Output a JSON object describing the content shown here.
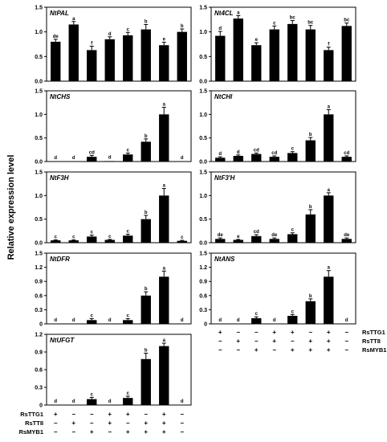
{
  "ylabel": "Relative expression level",
  "treatment_rows": [
    "RsTTG1",
    "RsTT8",
    "RsMYB1"
  ],
  "treatment_signs": [
    [
      "+",
      "−",
      "−",
      "+",
      "+",
      "−",
      "+",
      "−"
    ],
    [
      "−",
      "+",
      "−",
      "+",
      "−",
      "+",
      "+",
      "−"
    ],
    [
      "−",
      "−",
      "+",
      "−",
      "+",
      "+",
      "+",
      "−"
    ]
  ],
  "chart_data": [
    {
      "type": "bar",
      "title": "NtPAL",
      "ylim": [
        0,
        1.5
      ],
      "yticks": [
        "0.0",
        "0.5",
        "1.0",
        "1.5"
      ],
      "values": [
        0.8,
        1.15,
        0.63,
        0.85,
        0.93,
        1.05,
        0.73,
        1.0
      ],
      "errors": [
        0.05,
        0.06,
        0.08,
        0.05,
        0.06,
        0.1,
        0.06,
        0.06
      ],
      "letters": [
        "de",
        "a",
        "f",
        "d",
        "c",
        "b",
        "e",
        "b"
      ]
    },
    {
      "type": "bar",
      "title": "Nt4CL",
      "ylim": [
        0,
        1.5
      ],
      "yticks": [
        "0.0",
        "0.5",
        "1.0",
        "1.5"
      ],
      "values": [
        0.92,
        1.27,
        0.73,
        1.05,
        1.16,
        1.05,
        0.63,
        1.12
      ],
      "errors": [
        0.09,
        0.06,
        0.05,
        0.07,
        0.07,
        0.08,
        0.06,
        0.06
      ],
      "letters": [
        "d",
        "a",
        "e",
        "c",
        "bc",
        "bc",
        "f",
        "bc"
      ]
    },
    {
      "type": "bar",
      "title": "NtCHS",
      "ylim": [
        0,
        1.5
      ],
      "yticks": [
        "0.0",
        "0.5",
        "1.0",
        "1.5"
      ],
      "values": [
        0,
        0,
        0.1,
        0.01,
        0.15,
        0.42,
        1.0,
        0
      ],
      "errors": [
        0,
        0,
        0.03,
        0,
        0.03,
        0.06,
        0.15,
        0
      ],
      "letters": [
        "d",
        "d",
        "cd",
        "d",
        "c",
        "b",
        "a",
        "d"
      ]
    },
    {
      "type": "bar",
      "title": "NtCHI",
      "ylim": [
        0,
        1.5
      ],
      "yticks": [
        "0.0",
        "0.5",
        "1.0",
        "1.5"
      ],
      "values": [
        0.08,
        0.12,
        0.16,
        0.1,
        0.18,
        0.45,
        1.0,
        0.1
      ],
      "errors": [
        0.02,
        0.02,
        0.02,
        0.02,
        0.03,
        0.06,
        0.1,
        0.02
      ],
      "letters": [
        "d",
        "d",
        "cd",
        "cd",
        "c",
        "b",
        "a",
        "cd"
      ]
    },
    {
      "type": "bar",
      "title": "NtF3H",
      "ylim": [
        0,
        1.5
      ],
      "yticks": [
        "0.0",
        "0.5",
        "1.0",
        "1.5"
      ],
      "values": [
        0.05,
        0.05,
        0.13,
        0.06,
        0.15,
        0.5,
        1.0,
        0.04
      ],
      "errors": [
        0.01,
        0.01,
        0.03,
        0.01,
        0.03,
        0.08,
        0.15,
        0.01
      ],
      "letters": [
        "c",
        "c",
        "c",
        "c",
        "c",
        "b",
        "a",
        "c"
      ]
    },
    {
      "type": "bar",
      "title": "NtF3'H",
      "ylim": [
        0,
        1.5
      ],
      "yticks": [
        "0.0",
        "0.5",
        "1.0",
        "1.5"
      ],
      "values": [
        0.08,
        0.06,
        0.14,
        0.08,
        0.18,
        0.6,
        1.0,
        0.08
      ],
      "errors": [
        0.02,
        0.01,
        0.03,
        0.02,
        0.03,
        0.1,
        0.06,
        0.02
      ],
      "letters": [
        "de",
        "e",
        "cd",
        "de",
        "c",
        "b",
        "a",
        "de"
      ]
    },
    {
      "type": "bar",
      "title": "NtDFR",
      "ylim": [
        0,
        1.5
      ],
      "yticks": [
        "0",
        "0.3",
        "0.6",
        "0.9",
        "1.2",
        "1.5"
      ],
      "values": [
        0,
        0,
        0.08,
        0,
        0.08,
        0.6,
        1.0,
        0
      ],
      "errors": [
        0,
        0,
        0.03,
        0,
        0.03,
        0.08,
        0.12,
        0
      ],
      "letters": [
        "d",
        "d",
        "c",
        "d",
        "c",
        "b",
        "a",
        "d"
      ]
    },
    {
      "type": "bar",
      "title": "NtANS",
      "ylim": [
        0,
        1.5
      ],
      "yticks": [
        "0",
        "0.3",
        "0.6",
        "0.9",
        "1.2",
        "1.5"
      ],
      "values": [
        0,
        0,
        0.12,
        0,
        0.17,
        0.48,
        1.0,
        0
      ],
      "errors": [
        0,
        0,
        0.03,
        0,
        0.03,
        0.05,
        0.13,
        0
      ],
      "letters": [
        "d",
        "d",
        "c",
        "d",
        "c",
        "b",
        "a",
        "d"
      ]
    },
    {
      "type": "bar",
      "title": "NtUFGT",
      "ylim": [
        0,
        1.2
      ],
      "yticks": [
        "0",
        "0.3",
        "0.6",
        "0.9",
        "1.2"
      ],
      "values": [
        0,
        0,
        0.1,
        0,
        0.12,
        0.78,
        1.0,
        0
      ],
      "errors": [
        0,
        0,
        0.03,
        0,
        0.03,
        0.1,
        0.05,
        0
      ],
      "letters": [
        "d",
        "d",
        "c",
        "d",
        "c",
        "b",
        "a",
        "d"
      ]
    }
  ]
}
